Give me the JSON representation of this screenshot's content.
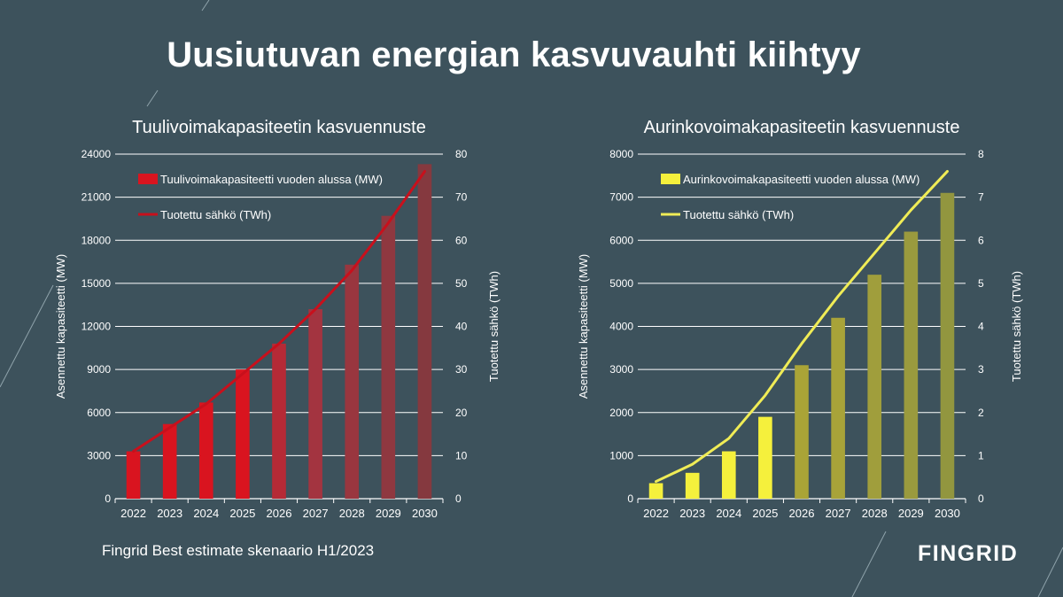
{
  "page": {
    "title": "Uusiutuvan energian kasvuvauhti kiihtyy",
    "footnote": "Fingrid Best estimate skenaario H1/2023",
    "logo": "FINGRID"
  },
  "chart_data": [
    {
      "id": "wind",
      "type": "bar+line",
      "title": "Tuulivoimakapasiteetin kasvuennuste",
      "categories": [
        "2022",
        "2023",
        "2024",
        "2025",
        "2026",
        "2027",
        "2028",
        "2029",
        "2030"
      ],
      "ylabel": "Asennettu kapasiteetti (MW)",
      "y2label": "Tuotettu sähkö (TWh)",
      "ylim": [
        0,
        24000
      ],
      "y2lim": [
        0,
        80
      ],
      "yticks": [
        "0",
        "3000",
        "6000",
        "9000",
        "12000",
        "15000",
        "18000",
        "21000",
        "24000"
      ],
      "y2ticks": [
        "0",
        "10",
        "20",
        "30",
        "40",
        "50",
        "60",
        "70",
        "80"
      ],
      "grid": true,
      "legend_position": "top-left",
      "series": [
        {
          "name": "Tuulivoimakapasiteetti vuoden alussa (MW)",
          "kind": "bar",
          "axis": "left",
          "values": [
            3300,
            5200,
            6700,
            9000,
            10800,
            13200,
            16300,
            19700,
            23300
          ],
          "colors": [
            "#d9141f",
            "#d9141f",
            "#d9141f",
            "#d9141f",
            "#b52a36",
            "#a33440",
            "#99363f",
            "#8f3840",
            "#85393f"
          ]
        },
        {
          "name": "Tuotettu sähkö (TWh)",
          "kind": "line",
          "axis": "right",
          "values": [
            11,
            16.5,
            22,
            29,
            36,
            44,
            53,
            64,
            76
          ],
          "color": "#c8101c"
        }
      ]
    },
    {
      "id": "solar",
      "type": "bar+line",
      "title": "Aurinkovoimakapasiteetin kasvuennuste",
      "categories": [
        "2022",
        "2023",
        "2024",
        "2025",
        "2026",
        "2027",
        "2028",
        "2029",
        "2030"
      ],
      "ylabel": "Asennettu kapasiteetti (MW)",
      "y2label": "Tuotettu sähkö (TWh)",
      "ylim": [
        0,
        8000
      ],
      "y2lim": [
        0,
        8
      ],
      "yticks": [
        "0",
        "1000",
        "2000",
        "3000",
        "4000",
        "5000",
        "6000",
        "7000",
        "8000"
      ],
      "y2ticks": [
        "0",
        "1",
        "2",
        "3",
        "4",
        "5",
        "6",
        "7",
        "8"
      ],
      "grid": true,
      "legend_position": "top-left",
      "series": [
        {
          "name": "Aurinkovoimakapasiteetti vuoden alussa (MW)",
          "kind": "bar",
          "axis": "left",
          "values": [
            360,
            600,
            1100,
            1900,
            3100,
            4200,
            5200,
            6200,
            7100
          ],
          "colors": [
            "#f5f03c",
            "#f5f03c",
            "#f5f03c",
            "#f5f03c",
            "#aaa437",
            "#a8a339",
            "#a09e3c",
            "#9a9a3e",
            "#92963f"
          ]
        },
        {
          "name": "Tuotettu sähkö (TWh)",
          "kind": "line",
          "axis": "right",
          "values": [
            0.4,
            0.8,
            1.4,
            2.4,
            3.6,
            4.7,
            5.7,
            6.7,
            7.6
          ],
          "color": "#f0ec56"
        }
      ]
    }
  ]
}
